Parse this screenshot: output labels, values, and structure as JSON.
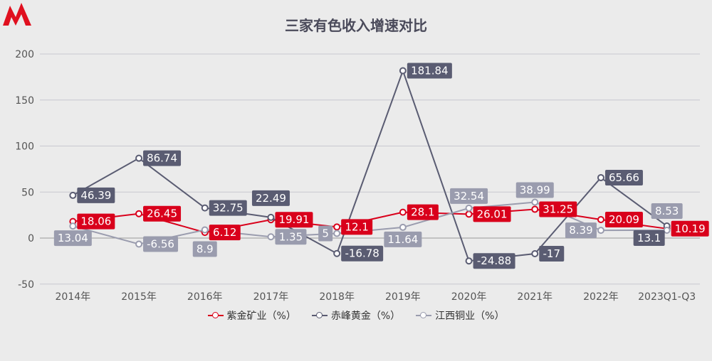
{
  "chart_data": {
    "type": "line",
    "title": "三家有色收入增速对比",
    "categories": [
      "2014年",
      "2015年",
      "2016年",
      "2017年",
      "2018年",
      "2019年",
      "2020年",
      "2021年",
      "2022年",
      "2023Q1-Q3"
    ],
    "ylim": [
      -50,
      200
    ],
    "yticks": [
      -50,
      0,
      50,
      100,
      150,
      200
    ],
    "grid": true,
    "legend_position": "bottom",
    "series": [
      {
        "name": "紫金矿业（%）",
        "color": "#d9001b",
        "values": [
          18.06,
          26.45,
          6.12,
          19.91,
          12.1,
          28.1,
          26.01,
          31.25,
          20.09,
          10.19
        ]
      },
      {
        "name": "赤峰黄金（%）",
        "color": "#5a5c72",
        "values": [
          46.39,
          86.74,
          32.75,
          22.49,
          -16.78,
          181.84,
          -24.88,
          -17,
          65.66,
          13.1
        ]
      },
      {
        "name": "江西铜业（%）",
        "color": "#9a9cae",
        "values": [
          13.04,
          -6.56,
          8.9,
          1.35,
          5,
          11.64,
          32.54,
          38.99,
          8.39,
          8.53
        ]
      }
    ]
  }
}
